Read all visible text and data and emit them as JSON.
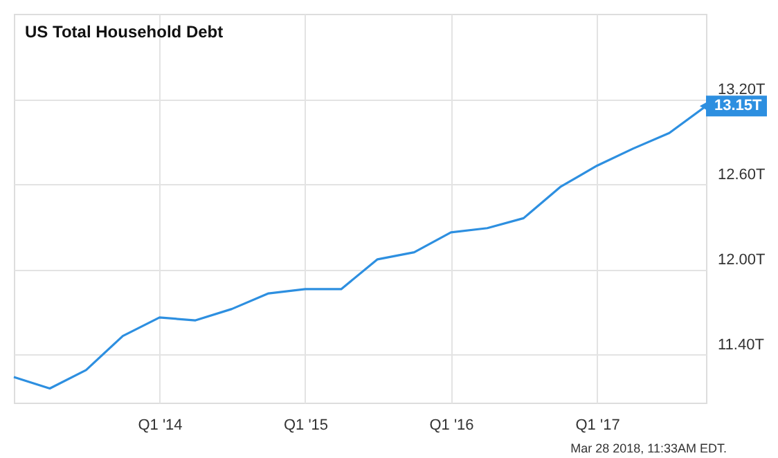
{
  "chart_data": {
    "type": "line",
    "title": "US Total Household Debt",
    "x": [
      "2013-01",
      "2013-04",
      "2013-07",
      "2013-10",
      "2014-01",
      "2014-04",
      "2014-07",
      "2014-10",
      "2015-01",
      "2015-04",
      "2015-07",
      "2015-10",
      "2016-01",
      "2016-04",
      "2016-07",
      "2016-10",
      "2017-01",
      "2017-04",
      "2017-07",
      "2017-10"
    ],
    "series": [
      {
        "color": "#2d8fe0",
        "values": [
          11.24,
          11.16,
          11.29,
          11.53,
          11.66,
          11.64,
          11.72,
          11.83,
          11.86,
          11.86,
          12.07,
          12.12,
          12.26,
          12.29,
          12.36,
          12.58,
          12.73,
          12.85,
          12.96,
          13.15
        ],
        "value_labels": [
          null,
          null,
          null,
          null,
          null,
          null,
          null,
          null,
          null,
          null,
          null,
          null,
          null,
          null,
          null,
          null,
          null,
          null,
          null,
          "13.15T"
        ]
      }
    ],
    "xlim": [
      "2013-01",
      "2017-10"
    ],
    "xticks": [
      {
        "value": "2014-01",
        "label": "Q1 '14"
      },
      {
        "value": "2015-01",
        "label": "Q1 '15"
      },
      {
        "value": "2016-01",
        "label": "Q1 '16"
      },
      {
        "value": "2017-01",
        "label": "Q1 '17"
      }
    ],
    "ylim": [
      11.06,
      13.8
    ],
    "yticks": [
      {
        "value": 11.4,
        "label": "11.40T"
      },
      {
        "value": 12.0,
        "label": "12.00T"
      },
      {
        "value": 12.6,
        "label": "12.60T"
      },
      {
        "value": 13.2,
        "label": "13.20T"
      }
    ],
    "grid": true,
    "marker": "none",
    "line_style": "solid",
    "annotations": [
      "Mar 28 2018, 11:33AM EDT."
    ]
  }
}
